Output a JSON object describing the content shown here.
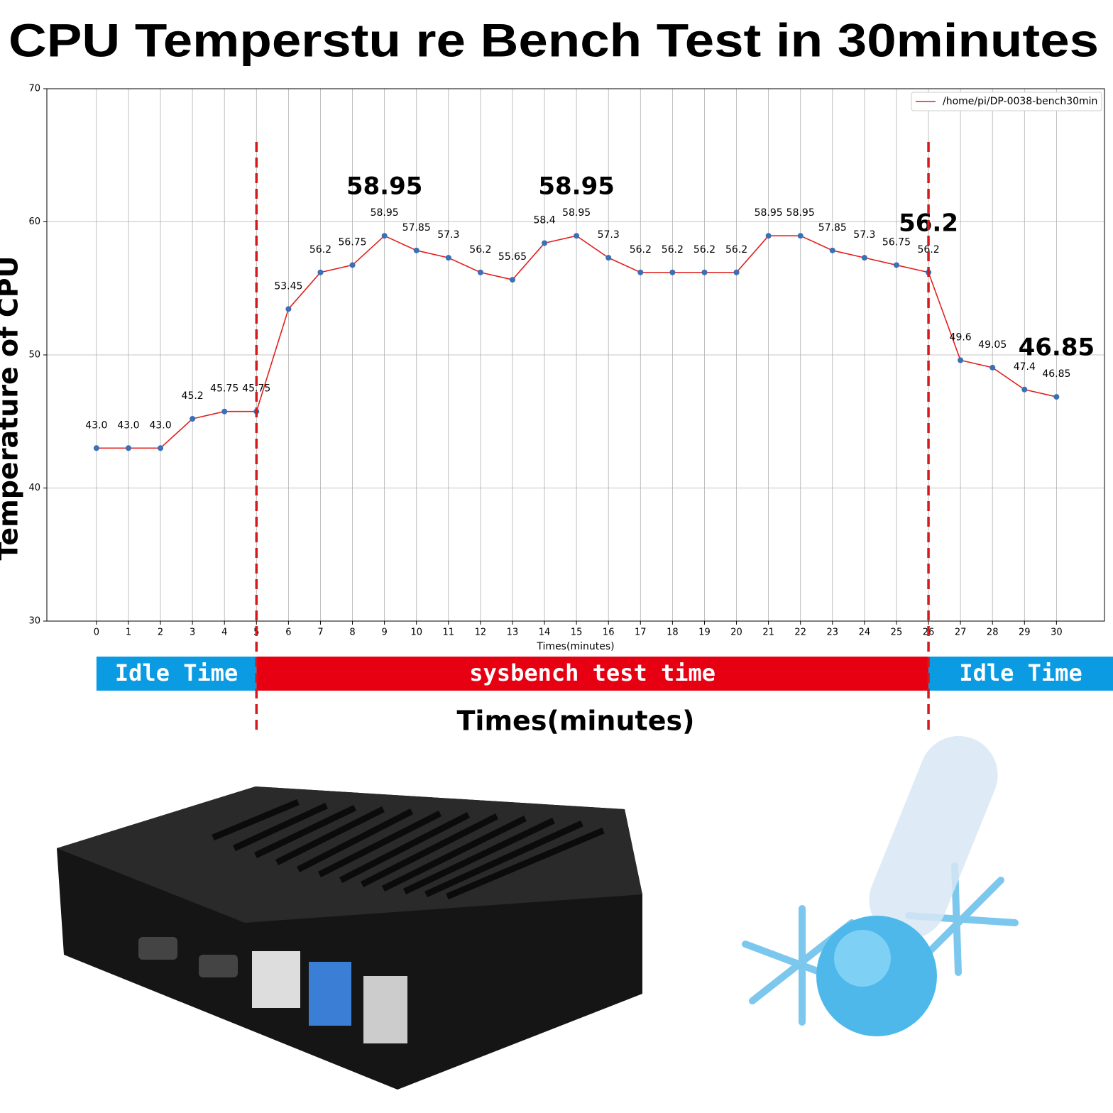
{
  "chart_data": {
    "type": "line",
    "title": "CPU Temperstu re Bench Test in 30minutes",
    "ylabel": "Temperature of CPU",
    "xlabel": "Times(minutes)",
    "xlabel_large": "Times(minutes)",
    "x": [
      0,
      1,
      2,
      3,
      4,
      5,
      6,
      7,
      8,
      9,
      10,
      11,
      12,
      13,
      14,
      15,
      16,
      17,
      18,
      19,
      20,
      21,
      22,
      23,
      24,
      25,
      26,
      27,
      28,
      29,
      30
    ],
    "series": [
      {
        "name": "/home/pi/DP-0038-bench30min",
        "color": "#e0201e",
        "marker_color": "#3b6fb6",
        "values": [
          43.0,
          43.0,
          43.0,
          45.2,
          45.75,
          45.75,
          53.45,
          56.2,
          56.75,
          58.95,
          57.85,
          57.3,
          56.2,
          55.65,
          58.4,
          58.95,
          57.3,
          56.2,
          56.2,
          56.2,
          56.2,
          58.95,
          58.95,
          57.85,
          57.3,
          56.75,
          56.2,
          49.6,
          49.05,
          47.4,
          46.85
        ],
        "value_labels": [
          "43.0",
          "43.0",
          "43.0",
          "45.2",
          "45.75",
          "45.75",
          "53.45",
          "56.2",
          "56.75",
          "58.95",
          "57.85",
          "57.3",
          "56.2",
          "55.65",
          "58.4",
          "58.95",
          "57.3",
          "56.2",
          "56.2",
          "56.2",
          "56.2",
          "58.95",
          "58.95",
          "57.85",
          "57.3",
          "56.75",
          "56.2",
          "49.6",
          "49.05",
          "47.4",
          "46.85"
        ]
      }
    ],
    "xlim": [
      -1.55,
      31.5
    ],
    "xticks": [
      0,
      1,
      2,
      3,
      4,
      5,
      6,
      7,
      8,
      9,
      10,
      11,
      12,
      13,
      14,
      15,
      16,
      17,
      18,
      19,
      20,
      21,
      22,
      23,
      24,
      25,
      26,
      27,
      28,
      29,
      30
    ],
    "ylim": [
      30,
      70
    ],
    "yticks": [
      30,
      40,
      50,
      60,
      70
    ],
    "grid": true,
    "legend": "upper right",
    "annotations": [
      {
        "x": 9,
        "y": 58.95,
        "label": "58.95"
      },
      {
        "x": 15,
        "y": 58.95,
        "label": "58.95"
      },
      {
        "x": 26,
        "y": 56.2,
        "label": "56.2"
      },
      {
        "x": 30,
        "y": 46.85,
        "label": "46.85"
      }
    ],
    "phases": [
      {
        "label": "Idle Time",
        "start": 0,
        "end": 5,
        "color": "#0a9be3"
      },
      {
        "label": "sysbench test time",
        "start": 5,
        "end": 26,
        "color": "#e60012"
      },
      {
        "label": "Idle Time",
        "start": 26,
        "color": "#0a9be3"
      }
    ]
  }
}
